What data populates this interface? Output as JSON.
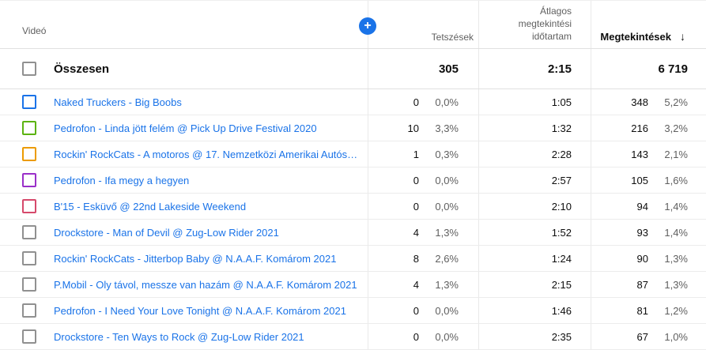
{
  "table": {
    "headers": {
      "video": "Videó",
      "likes": "Tetszések",
      "avg_view_duration": "Átlagos megtekintési időtartam",
      "views": "Megtekintések"
    },
    "sort_arrow": "↓",
    "add_metric_label": "+",
    "totals": {
      "label": "Összesen",
      "likes": "305",
      "avg_view_duration": "2:15",
      "views": "6 719"
    },
    "rows": [
      {
        "title": "Naked Truckers - Big Boobs",
        "checkbox_color": "#1a73e8",
        "likes": "0",
        "likes_pct": "0,0%",
        "duration": "1:05",
        "views": "348",
        "views_pct": "5,2%"
      },
      {
        "title": "Pedrofon - Linda jött felém @ Pick Up Drive Festival 2020",
        "checkbox_color": "#5cb310",
        "likes": "10",
        "likes_pct": "3,3%",
        "duration": "1:32",
        "views": "216",
        "views_pct": "3,2%"
      },
      {
        "title": "Rockin' RockCats - A motoros @ 17. Nemzetközi Amerikai Autós Fe…",
        "checkbox_color": "#ec9b00",
        "likes": "1",
        "likes_pct": "0,3%",
        "duration": "2:28",
        "views": "143",
        "views_pct": "2,1%"
      },
      {
        "title": "Pedrofon - Ifa megy a hegyen",
        "checkbox_color": "#9a2fc9",
        "likes": "0",
        "likes_pct": "0,0%",
        "duration": "2:57",
        "views": "105",
        "views_pct": "1,6%"
      },
      {
        "title": "B'15 - Esküvő @ 22nd Lakeside Weekend",
        "checkbox_color": "#d6496b",
        "likes": "0",
        "likes_pct": "0,0%",
        "duration": "2:10",
        "views": "94",
        "views_pct": "1,4%"
      },
      {
        "title": "Drockstore - Man of Devil @ Zug-Low Rider 2021",
        "checkbox_color": "#909090",
        "likes": "4",
        "likes_pct": "1,3%",
        "duration": "1:52",
        "views": "93",
        "views_pct": "1,4%"
      },
      {
        "title": "Rockin' RockCats - Jitterbop Baby @ N.A.A.F. Komárom 2021",
        "checkbox_color": "#909090",
        "likes": "8",
        "likes_pct": "2,6%",
        "duration": "1:24",
        "views": "90",
        "views_pct": "1,3%"
      },
      {
        "title": "P.Mobil - Oly távol, messze van hazám @ N.A.A.F. Komárom 2021",
        "checkbox_color": "#909090",
        "likes": "4",
        "likes_pct": "1,3%",
        "duration": "2:15",
        "views": "87",
        "views_pct": "1,3%"
      },
      {
        "title": "Pedrofon - I Need Your Love Tonight @ N.A.A.F. Komárom 2021",
        "checkbox_color": "#909090",
        "likes": "0",
        "likes_pct": "0,0%",
        "duration": "1:46",
        "views": "81",
        "views_pct": "1,2%"
      },
      {
        "title": "Drockstore - Ten Ways to Rock @ Zug-Low Rider 2021",
        "checkbox_color": "#909090",
        "likes": "0",
        "likes_pct": "0,0%",
        "duration": "2:35",
        "views": "67",
        "views_pct": "1,0%"
      }
    ]
  },
  "colors": {
    "accent_blue": "#1a73e8",
    "link_blue": "#1a73e8",
    "header_gray": "#606060",
    "divider_gray": "#e9e9e9"
  }
}
